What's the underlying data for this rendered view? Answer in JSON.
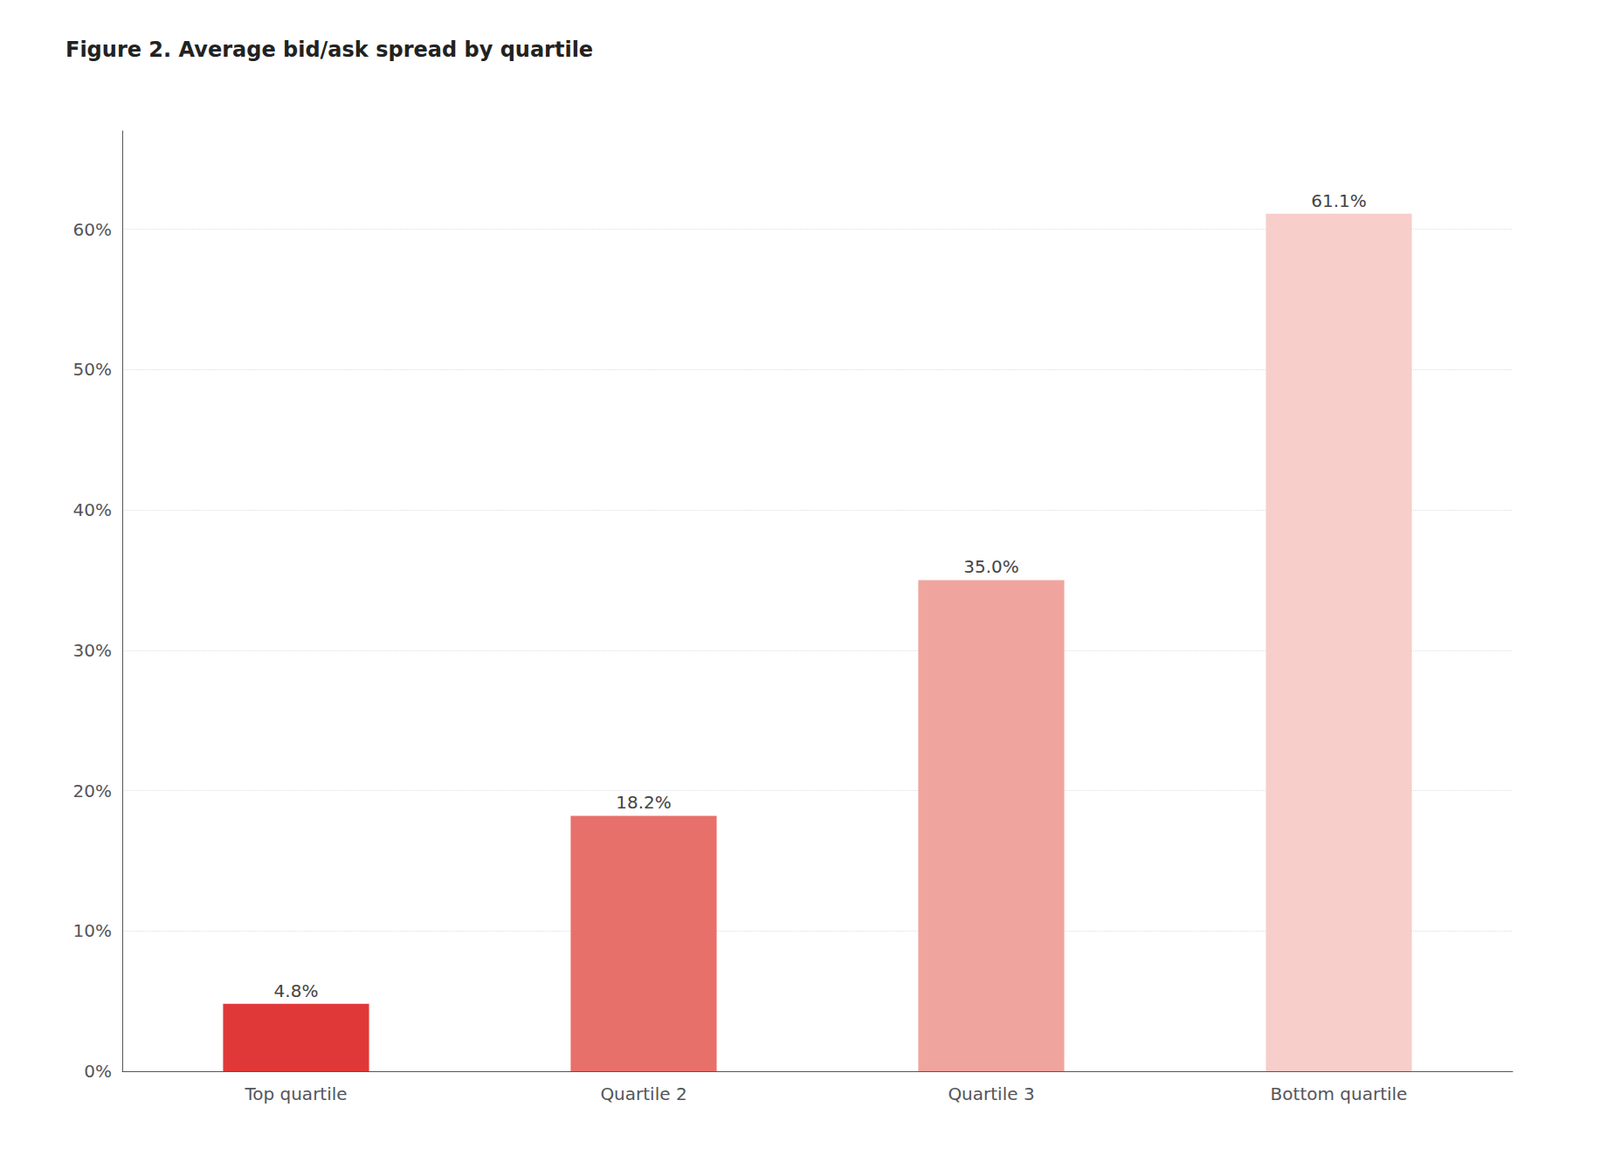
{
  "chart_data": {
    "type": "bar",
    "title": "Figure 2. Average bid/ask spread by quartile",
    "categories": [
      "Top quartile",
      "Quartile 2",
      "Quartile 3",
      "Bottom quartile"
    ],
    "values": [
      4.8,
      18.2,
      35.0,
      61.1
    ],
    "value_labels": [
      "4.8%",
      "18.2%",
      "35.0%",
      "61.1%"
    ],
    "colors": [
      "#e03838",
      "#e8706a",
      "#f0a49e",
      "#f7ceca"
    ],
    "ylim": [
      0,
      67
    ],
    "yticks": [
      {
        "value": 0,
        "label": "0%"
      },
      {
        "value": 10,
        "label": "10%"
      },
      {
        "value": 20,
        "label": "20%"
      },
      {
        "value": 30,
        "label": "30%"
      },
      {
        "value": 40,
        "label": "40%"
      },
      {
        "value": 50,
        "label": "50%"
      },
      {
        "value": 60,
        "label": "60%"
      }
    ],
    "grid": true,
    "data_labels": true
  }
}
